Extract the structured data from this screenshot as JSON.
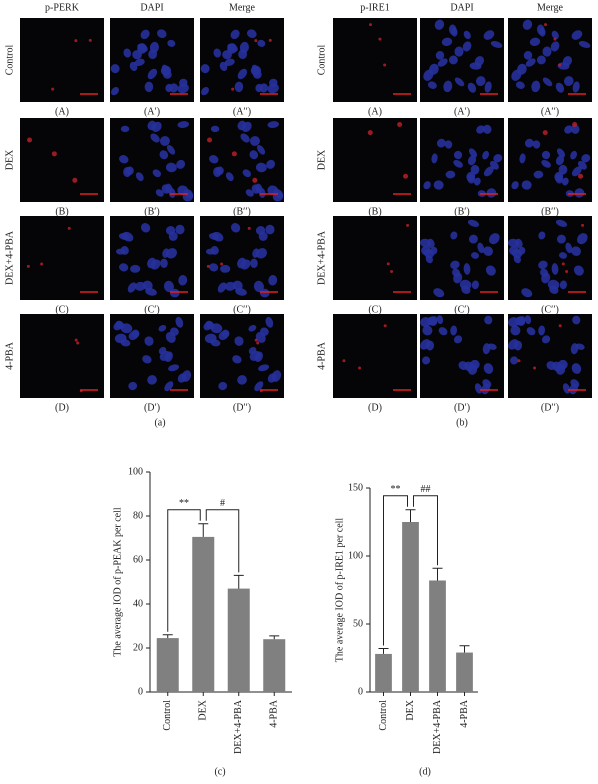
{
  "panels": [
    {
      "headers": [
        "p-PERK",
        "DAPI",
        "Merge"
      ],
      "rows": [
        "Control",
        "DEX",
        "DEX+4-PBA",
        "4-PBA"
      ],
      "labels": [
        [
          "(A)",
          "(A′)",
          "(A′′)"
        ],
        [
          "(B)",
          "(B′)",
          "(B′′)"
        ],
        [
          "(C)",
          "(C′)",
          "(C′′)"
        ],
        [
          "(D)",
          "(D′)",
          "(D′′)"
        ]
      ],
      "caption": "(a)"
    },
    {
      "headers": [
        "p-IRE1",
        "DAPI",
        "Merge"
      ],
      "rows": [
        "Control",
        "DEX",
        "DEX+4-PBA",
        "4-PBA"
      ],
      "labels": [
        [
          "(A)",
          "(A′)",
          "(A′′)"
        ],
        [
          "(B)",
          "(B′)",
          "(B′′)"
        ],
        [
          "(C)",
          "(C′)",
          "(C′′)"
        ],
        [
          "(D)",
          "(D′)",
          "(D′′)"
        ]
      ],
      "caption": "(b)"
    }
  ],
  "chart_data": [
    {
      "type": "bar",
      "ylabel": "The average IOD of p-PEAK per cell",
      "categories": [
        "Control",
        "DEX",
        "DEX+4-PBA",
        "4-PBA"
      ],
      "values": [
        24.5,
        70.5,
        47,
        24
      ],
      "errors": [
        1.5,
        6,
        6,
        1.5
      ],
      "color": "#808080",
      "ylim": [
        0,
        100
      ],
      "yticks": [
        0,
        20,
        40,
        60,
        80,
        100
      ],
      "annotations": [
        "**",
        "#"
      ],
      "caption": "(c)"
    },
    {
      "type": "bar",
      "ylabel": "The average IOD of p-IRE1 per cell",
      "categories": [
        "Control",
        "DEX",
        "DEX+4-PBA",
        "4-PBA"
      ],
      "values": [
        28,
        125,
        82,
        29
      ],
      "errors": [
        4,
        9,
        9,
        5
      ],
      "color": "#808080",
      "ylim": [
        0,
        150
      ],
      "yticks": [
        0,
        50,
        100,
        150
      ],
      "annotations": [
        "**",
        "##"
      ],
      "caption": "(d)"
    }
  ]
}
